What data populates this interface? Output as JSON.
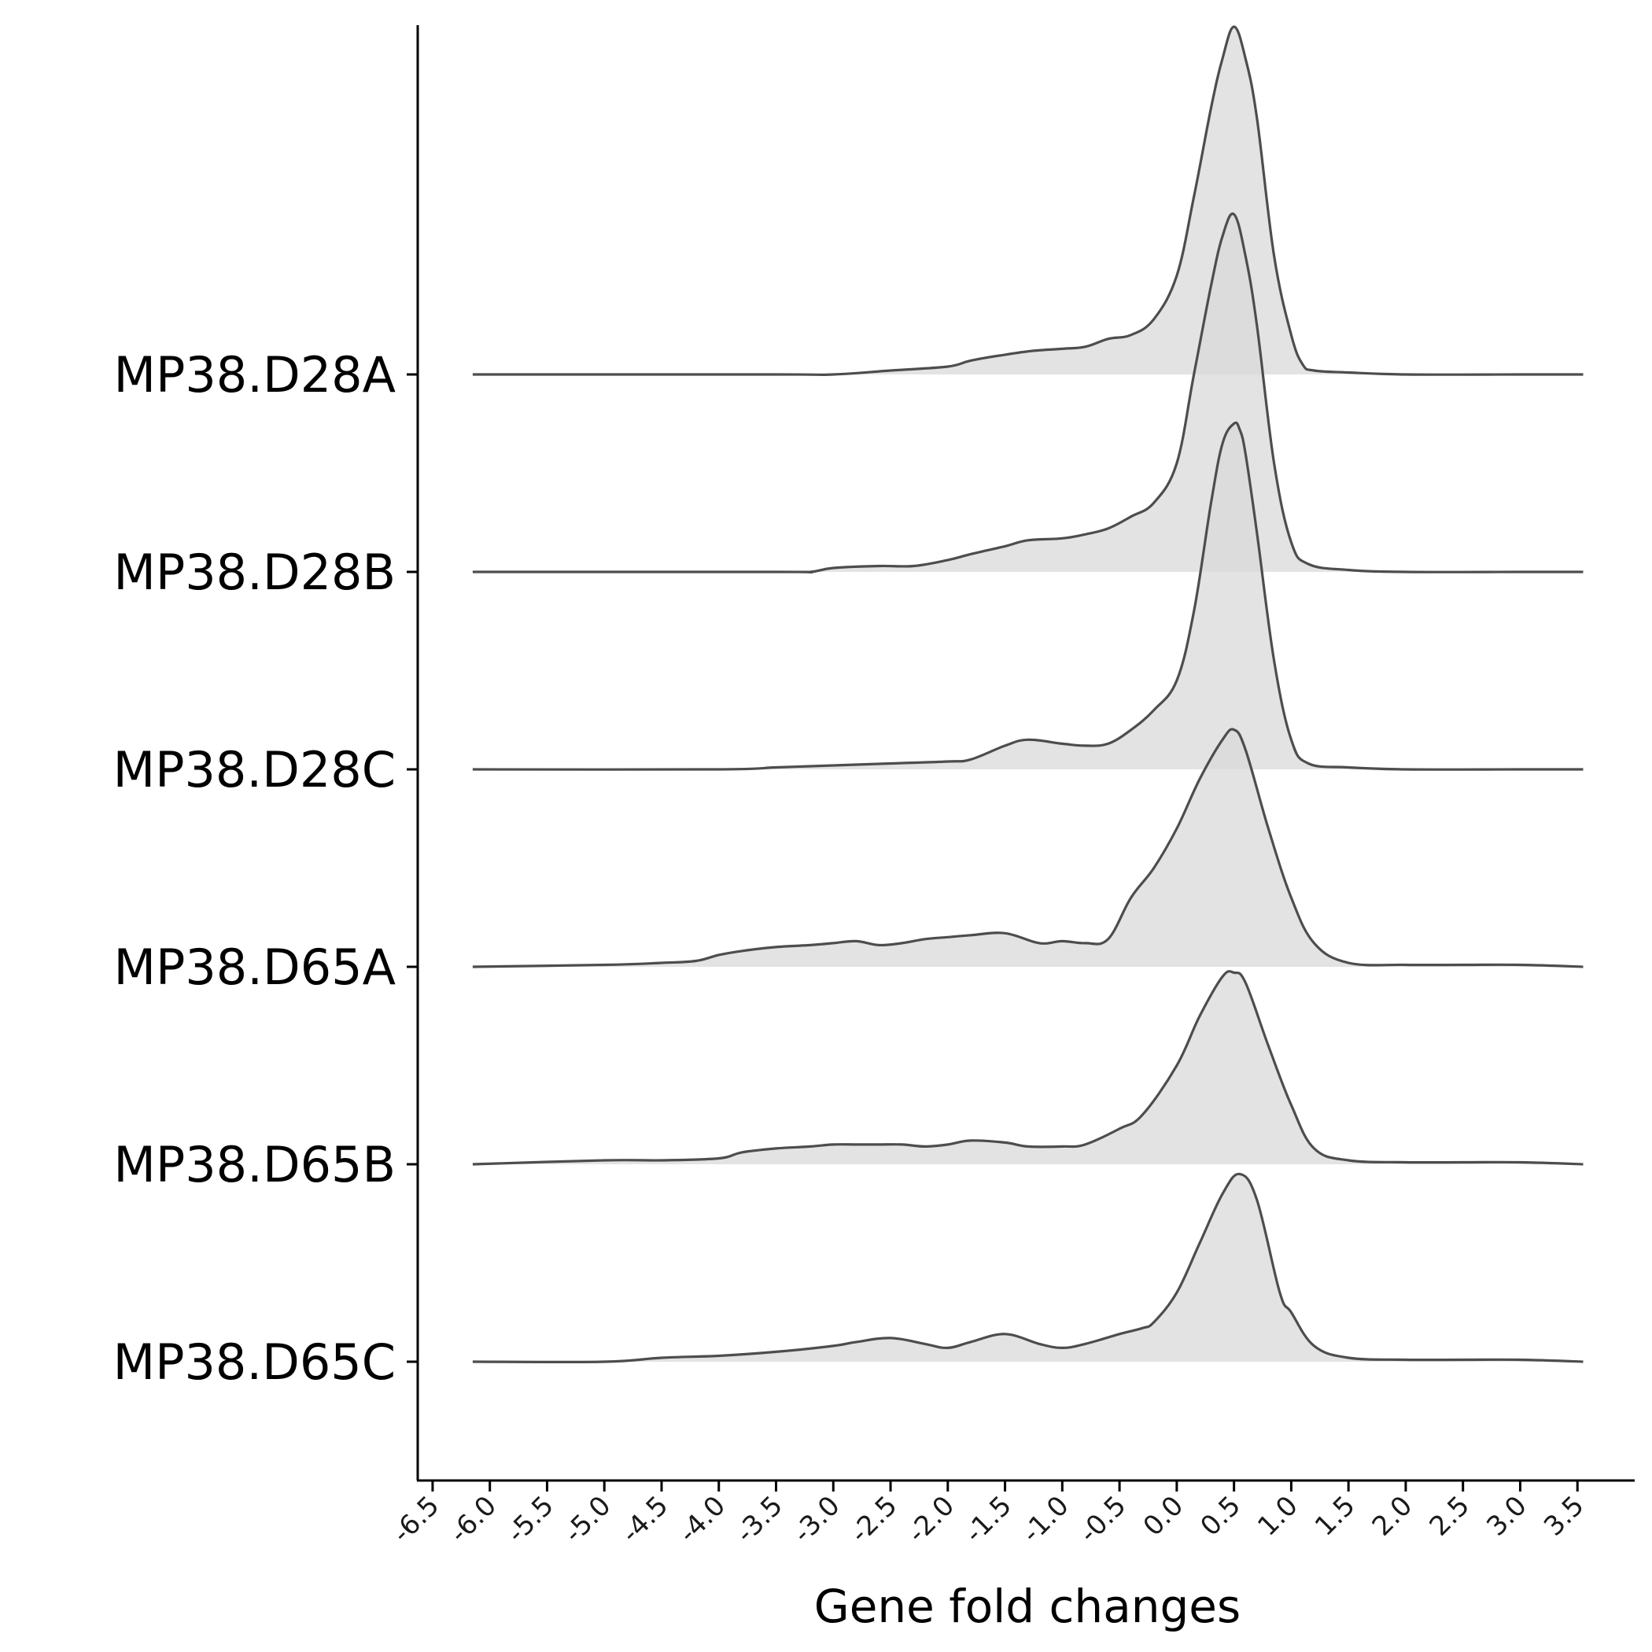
{
  "chart_data": {
    "type": "ridgeline",
    "xlabel": "Gene fold changes",
    "ylabel": "",
    "xlim": [
      -6.63,
      4.0
    ],
    "x_ticks": [
      "-6.5",
      "-6.0",
      "-5.5",
      "-5.0",
      "-4.5",
      "-4.0",
      "-3.5",
      "-3.0",
      "-2.5",
      "-2.0",
      "-1.5",
      "-1.0",
      "-0.5",
      "0.0",
      "0.5",
      "1.0",
      "1.5",
      "2.0",
      "2.5",
      "3.0",
      "3.5"
    ],
    "x_tick_values": [
      -6.5,
      -6.0,
      -5.5,
      -5.0,
      -4.5,
      -4.0,
      -3.5,
      -3.0,
      -2.5,
      -2.0,
      -1.5,
      -1.0,
      -0.5,
      0.0,
      0.5,
      1.0,
      1.5,
      2.0,
      2.5,
      3.0,
      3.5
    ],
    "y_categories": [
      "MP38.D28A",
      "MP38.D28B",
      "MP38.D28C",
      "MP38.D65A",
      "MP38.D65B",
      "MP38.D65C"
    ],
    "density_scale_max": 1.76,
    "fill_color": "#d9d9d9",
    "line_color": "#4d4d4d",
    "series": [
      {
        "name": "MP38.D28A",
        "x": [
          -6.15,
          -3.5,
          -3.0,
          -2.5,
          -2.0,
          -1.8,
          -1.5,
          -1.25,
          -1.0,
          -0.8,
          -0.6,
          -0.4,
          -0.2,
          0.0,
          0.15,
          0.3,
          0.4,
          0.5,
          0.6,
          0.7,
          0.85,
          1.0,
          1.1,
          1.2,
          1.5,
          2.0,
          3.0,
          3.55
        ],
        "y": [
          0.0,
          0.0,
          0.0,
          0.02,
          0.04,
          0.07,
          0.1,
          0.12,
          0.13,
          0.14,
          0.18,
          0.2,
          0.28,
          0.5,
          0.9,
          1.35,
          1.6,
          1.76,
          1.6,
          1.3,
          0.6,
          0.2,
          0.05,
          0.02,
          0.01,
          0.0,
          0.0,
          0.0
        ]
      },
      {
        "name": "MP38.D28B",
        "x": [
          -6.15,
          -3.5,
          -3.2,
          -3.0,
          -2.6,
          -2.3,
          -2.0,
          -1.8,
          -1.5,
          -1.3,
          -1.0,
          -0.8,
          -0.6,
          -0.4,
          -0.2,
          0.0,
          0.15,
          0.3,
          0.4,
          0.5,
          0.6,
          0.7,
          0.85,
          1.0,
          1.15,
          1.5,
          2.0,
          3.0,
          3.55
        ],
        "y": [
          0.0,
          0.0,
          0.0,
          0.02,
          0.03,
          0.03,
          0.06,
          0.09,
          0.13,
          0.16,
          0.17,
          0.19,
          0.22,
          0.28,
          0.35,
          0.55,
          1.0,
          1.45,
          1.7,
          1.81,
          1.6,
          1.25,
          0.55,
          0.15,
          0.04,
          0.01,
          0.0,
          0.0,
          0.0
        ]
      },
      {
        "name": "MP38.D28C",
        "x": [
          -6.15,
          -4.0,
          -3.5,
          -3.0,
          -2.5,
          -2.0,
          -1.8,
          -1.5,
          -1.3,
          -1.0,
          -0.8,
          -0.6,
          -0.4,
          -0.2,
          0.0,
          0.15,
          0.3,
          0.4,
          0.5,
          0.55,
          0.6,
          0.7,
          0.85,
          1.0,
          1.15,
          1.5,
          2.0,
          3.0,
          3.55
        ],
        "y": [
          0.0,
          0.0,
          0.01,
          0.02,
          0.03,
          0.04,
          0.05,
          0.12,
          0.15,
          0.13,
          0.12,
          0.13,
          0.2,
          0.3,
          0.45,
          0.8,
          1.35,
          1.65,
          1.75,
          1.72,
          1.6,
          1.2,
          0.55,
          0.15,
          0.03,
          0.01,
          0.0,
          0.0,
          0.0
        ]
      },
      {
        "name": "MP38.D65A",
        "x": [
          -6.15,
          -5.0,
          -4.5,
          -4.2,
          -4.0,
          -3.8,
          -3.5,
          -3.2,
          -3.0,
          -2.8,
          -2.6,
          -2.4,
          -2.2,
          -2.0,
          -1.8,
          -1.5,
          -1.2,
          -1.0,
          -0.8,
          -0.6,
          -0.4,
          -0.2,
          0.0,
          0.2,
          0.4,
          0.5,
          0.6,
          0.8,
          1.0,
          1.2,
          1.5,
          2.0,
          2.5,
          3.0,
          3.55
        ],
        "y": [
          0.0,
          0.01,
          0.02,
          0.03,
          0.06,
          0.08,
          0.1,
          0.11,
          0.12,
          0.13,
          0.11,
          0.12,
          0.14,
          0.15,
          0.16,
          0.17,
          0.12,
          0.13,
          0.12,
          0.14,
          0.35,
          0.5,
          0.7,
          0.95,
          1.15,
          1.2,
          1.1,
          0.7,
          0.35,
          0.12,
          0.02,
          0.01,
          0.01,
          0.01,
          0.0
        ]
      },
      {
        "name": "MP38.D65B",
        "x": [
          -6.15,
          -5.0,
          -4.5,
          -4.0,
          -3.8,
          -3.5,
          -3.2,
          -3.0,
          -2.8,
          -2.6,
          -2.4,
          -2.2,
          -2.0,
          -1.8,
          -1.5,
          -1.3,
          -1.0,
          -0.8,
          -0.5,
          -0.3,
          0.0,
          0.2,
          0.4,
          0.5,
          0.6,
          0.8,
          1.0,
          1.2,
          1.5,
          2.0,
          2.5,
          3.0,
          3.55
        ],
        "y": [
          0.0,
          0.02,
          0.02,
          0.03,
          0.06,
          0.08,
          0.09,
          0.1,
          0.1,
          0.1,
          0.1,
          0.09,
          0.1,
          0.12,
          0.11,
          0.09,
          0.09,
          0.1,
          0.18,
          0.25,
          0.5,
          0.75,
          0.95,
          0.97,
          0.92,
          0.6,
          0.3,
          0.08,
          0.02,
          0.01,
          0.01,
          0.01,
          0.0
        ]
      },
      {
        "name": "MP38.D65C",
        "x": [
          -6.15,
          -5.0,
          -4.5,
          -4.0,
          -3.5,
          -3.0,
          -2.8,
          -2.5,
          -2.2,
          -2.0,
          -1.8,
          -1.5,
          -1.2,
          -1.0,
          -0.8,
          -0.5,
          -0.3,
          -0.2,
          0.0,
          0.2,
          0.4,
          0.55,
          0.7,
          0.9,
          1.0,
          1.2,
          1.5,
          2.0,
          2.5,
          3.0,
          3.55
        ],
        "y": [
          0.0,
          0.0,
          0.02,
          0.03,
          0.05,
          0.08,
          0.1,
          0.12,
          0.09,
          0.07,
          0.1,
          0.14,
          0.09,
          0.07,
          0.09,
          0.14,
          0.17,
          0.2,
          0.35,
          0.6,
          0.85,
          0.95,
          0.82,
          0.35,
          0.25,
          0.08,
          0.02,
          0.01,
          0.01,
          0.01,
          0.0
        ]
      }
    ]
  }
}
